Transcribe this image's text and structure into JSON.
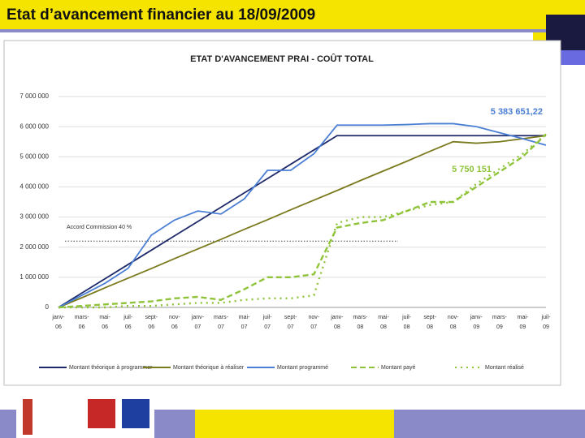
{
  "title": "Etat d’avancement financier au 18/09/2009",
  "chart_data": {
    "type": "line",
    "title": "ETAT D'AVANCEMENT PRAI - COÛT TOTAL",
    "categories": [
      "janv-06",
      "mars-06",
      "mai-06",
      "juil-06",
      "sept-06",
      "nov-06",
      "janv-07",
      "mars-07",
      "mai-07",
      "juil-07",
      "sept-07",
      "nov-07",
      "janv-08",
      "mars-08",
      "mai-08",
      "juil-08",
      "sept-08",
      "nov-08",
      "janv-09",
      "mars-09",
      "mai-09",
      "juil-09"
    ],
    "series": [
      {
        "name": "Montant théorique à programmer",
        "color": "#1f2a6b",
        "style": "solid",
        "values": [
          0,
          475000,
          950000,
          1425000,
          1900000,
          2375000,
          2850000,
          3325000,
          3800000,
          4275000,
          4750000,
          5225000,
          5700000,
          5700000,
          5700000,
          5700000,
          5700000,
          5700000,
          5700000,
          5700000,
          5700000,
          5700000
        ]
      },
      {
        "name": "Montant théorique à réaliser",
        "color": "#7a7a1e",
        "style": "solid",
        "values": [
          0,
          320000,
          650000,
          970000,
          1290000,
          1620000,
          1940000,
          2260000,
          2590000,
          2910000,
          3240000,
          3560000,
          3880000,
          4210000,
          4530000,
          4850000,
          5180000,
          5500000,
          5450000,
          5500000,
          5600000,
          5700000
        ]
      },
      {
        "name": "Montant programmé",
        "color": "#4a7fd4",
        "style": "solid",
        "values": [
          0,
          400000,
          800000,
          1300000,
          2400000,
          2900000,
          3200000,
          3100000,
          3600000,
          4550000,
          4550000,
          5100000,
          6050000,
          6050000,
          6050000,
          6070000,
          6100000,
          6100000,
          6000000,
          5800000,
          5600000,
          5383651.22
        ]
      },
      {
        "name": "Montant payé",
        "color": "#8fc43a",
        "style": "dashed",
        "values": [
          0,
          50000,
          100000,
          150000,
          200000,
          300000,
          350000,
          250000,
          600000,
          1000000,
          1000000,
          1100000,
          2650000,
          2800000,
          2900000,
          3200000,
          3500000,
          3500000,
          4000000,
          4500000,
          5000000,
          5750151
        ]
      },
      {
        "name": "Montant réalisé",
        "color": "#8fc43a",
        "style": "dotted",
        "values": [
          0,
          0,
          0,
          50000,
          50000,
          100000,
          150000,
          150000,
          250000,
          300000,
          300000,
          400000,
          2800000,
          3000000,
          3000000,
          3200000,
          3400000,
          3500000,
          4100000,
          4600000,
          5100000,
          5750151
        ]
      }
    ],
    "annotations": [
      {
        "text": "5 383 651,22",
        "color": "#4a7fd4"
      },
      {
        "text": "5 750 151",
        "color": "#8fc43a"
      }
    ],
    "reference_line": {
      "label": "Accord Commission 40 %",
      "value": 2200000
    },
    "ylim": [
      0,
      7000000
    ],
    "yticks": [
      0,
      {
        "value": 1000000,
        "label": "1 000 000"
      },
      {
        "value": 2000000,
        "label": "2 000 000"
      },
      {
        "value": 3000000,
        "label": "3 000 000"
      },
      {
        "value": 4000000,
        "label": "4 000 000"
      },
      {
        "value": 5000000,
        "label": "5 000 000"
      },
      {
        "value": 6000000,
        "label": "6 000 000"
      },
      {
        "value": 7000000,
        "label": "7 000 000"
      }
    ],
    "grid": true
  }
}
